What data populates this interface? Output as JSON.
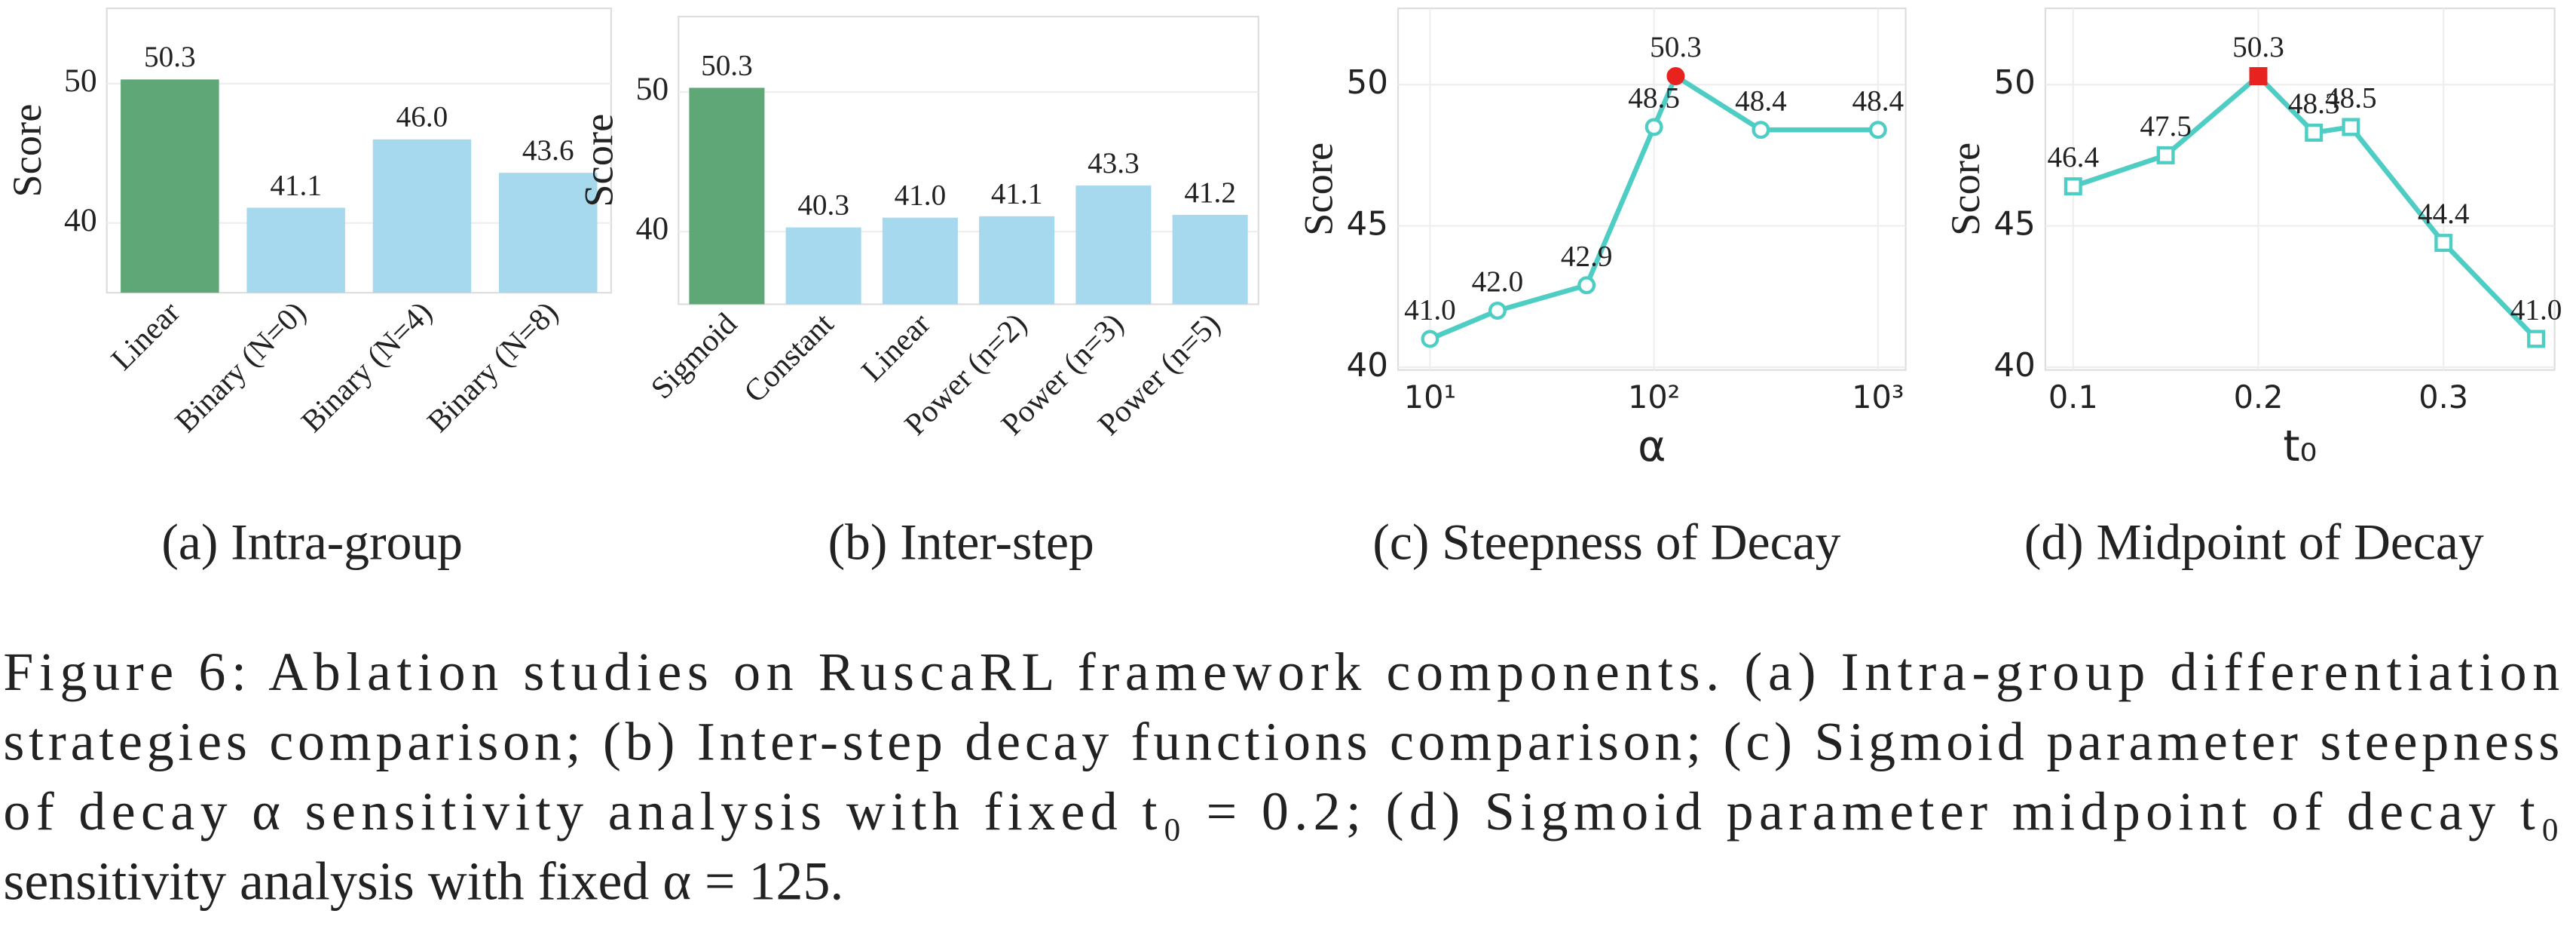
{
  "chart_data": [
    {
      "type": "bar",
      "caption": "(a) Intra-group",
      "ylabel": "Score",
      "categories": [
        "Linear",
        "Binary (N=0)",
        "Binary (N=4)",
        "Binary (N=8)"
      ],
      "values": [
        50.3,
        41.1,
        46.0,
        43.6
      ],
      "value_labels": [
        "50.3",
        "41.1",
        "46.0",
        "43.6"
      ],
      "colors": [
        "#5fa777",
        "#a6d8ee",
        "#a6d8ee",
        "#a6d8ee"
      ],
      "ylim": [
        35,
        55.4
      ],
      "yticks": [
        40,
        50
      ],
      "grid": true
    },
    {
      "type": "bar",
      "caption": "(b) Inter-step",
      "ylabel": "Score",
      "categories": [
        "Sigmoid",
        "Constant",
        "Linear",
        "Power (n=2)",
        "Power (n=3)",
        "Power (n=5)"
      ],
      "values": [
        50.3,
        40.3,
        41.0,
        41.1,
        43.3,
        41.2
      ],
      "value_labels": [
        "50.3",
        "40.3",
        "41.0",
        "41.1",
        "43.3",
        "41.2"
      ],
      "colors": [
        "#5fa777",
        "#a6d8ee",
        "#a6d8ee",
        "#a6d8ee",
        "#a6d8ee",
        "#a6d8ee"
      ],
      "ylim": [
        34.8,
        55.4
      ],
      "yticks": [
        40,
        50
      ],
      "grid": true
    },
    {
      "type": "line",
      "caption": "(c) Steepness of Decay",
      "ylabel": "Score",
      "xlabel": "α",
      "xscale": "log",
      "x": [
        10,
        20,
        50,
        100,
        125,
        300,
        1000
      ],
      "values": [
        41.0,
        42.0,
        42.9,
        48.5,
        50.3,
        48.4,
        48.4
      ],
      "value_labels": [
        "41.0",
        "42.0",
        "42.9",
        "48.5",
        "50.3",
        "48.4",
        "48.4"
      ],
      "color": "#4ecdc4",
      "marker": "circle",
      "highlight_index": 4,
      "highlight_color": "#e8221f",
      "xlim": [
        7.2,
        1330
      ],
      "xticks": [
        {
          "value": 10,
          "label": "10¹"
        },
        {
          "value": 100,
          "label": "10²"
        },
        {
          "value": 1000,
          "label": "10³"
        }
      ],
      "ylim": [
        39.9,
        52.7
      ],
      "yticks": [
        40,
        45,
        50
      ],
      "grid": true
    },
    {
      "type": "line",
      "caption": "(d) Midpoint of Decay",
      "ylabel": "Score",
      "xlabel": "t₀",
      "xscale": "linear",
      "x": [
        0.1,
        0.15,
        0.2,
        0.23,
        0.25,
        0.3,
        0.35
      ],
      "values": [
        46.4,
        47.5,
        50.3,
        48.3,
        48.5,
        44.4,
        41.0
      ],
      "value_labels": [
        "46.4",
        "47.5",
        "50.3",
        "48.3",
        "48.5",
        "44.4",
        "41.0"
      ],
      "color": "#4ecdc4",
      "marker": "square",
      "highlight_index": 2,
      "highlight_color": "#e8221f",
      "xlim": [
        0.085,
        0.36
      ],
      "xticks": [
        0.1,
        0.2,
        0.3
      ],
      "ylim": [
        39.9,
        52.7
      ],
      "yticks": [
        40,
        45,
        50
      ],
      "grid": true
    }
  ],
  "figure_caption": {
    "lines": [
      "Figure 6:  Ablation studies on RuscaRL framework components.  (a) Intra-group differentiation",
      "strategies comparison; (b) Inter-step decay functions comparison; (c) Sigmoid parameter steepness",
      "of decay α sensitivity analysis with fixed t₀ = 0.2; (d) Sigmoid parameter midpoint of decay t₀",
      "sensitivity analysis with fixed α = 125."
    ]
  }
}
